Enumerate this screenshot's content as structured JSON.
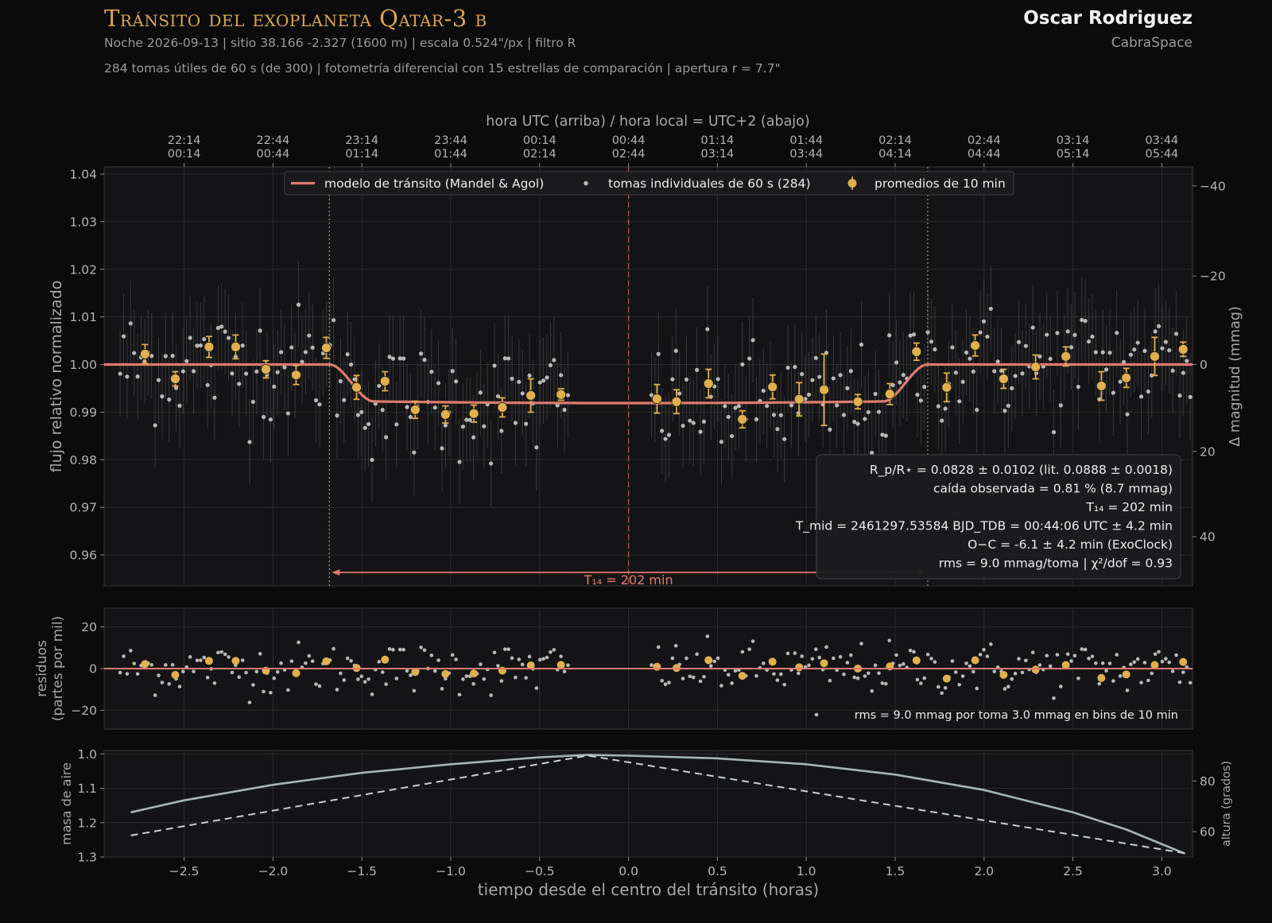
{
  "header": {
    "title": "Tránsito del exoplaneta Qatar-3 b",
    "line1": "Noche 2026-09-13   |   sitio 38.166 -2.327 (1600 m)   |   escala 0.524\"/px   |   filtro R",
    "line2": "284 tomas útiles de 60 s (de 300)   |   fotometría diferencial con 15 estrellas de comparación   |   apertura r = 7.7\"",
    "author": "Oscar Rodriguez",
    "organization": "CabraSpace"
  },
  "colors": {
    "background": "#0b0b0c",
    "panel": "#141416",
    "model": "#e07a6e",
    "binned": "#e0b04c",
    "points": "#b8b8b8",
    "airmass": "#a8b4b4",
    "title": "#d9a554"
  },
  "chart_data": [
    {
      "type": "scatter",
      "panel": "light-curve",
      "top_axis_title": "hora UTC (arriba)   /   hora local = UTC+2 (abajo)",
      "top_ticks": [
        {
          "x": -2.5,
          "utc": "22:14",
          "local": "00:14"
        },
        {
          "x": -2.0,
          "utc": "22:44",
          "local": "00:44"
        },
        {
          "x": -1.5,
          "utc": "23:14",
          "local": "01:14"
        },
        {
          "x": -1.0,
          "utc": "23:44",
          "local": "01:44"
        },
        {
          "x": -0.5,
          "utc": "00:14",
          "local": "02:14"
        },
        {
          "x": 0.0,
          "utc": "00:44",
          "local": "02:44"
        },
        {
          "x": 0.5,
          "utc": "01:14",
          "local": "03:14"
        },
        {
          "x": 1.0,
          "utc": "01:44",
          "local": "03:44"
        },
        {
          "x": 1.5,
          "utc": "02:14",
          "local": "04:14"
        },
        {
          "x": 2.0,
          "utc": "02:44",
          "local": "04:44"
        },
        {
          "x": 2.5,
          "utc": "03:14",
          "local": "05:14"
        },
        {
          "x": 3.0,
          "utc": "03:44",
          "local": "05:44"
        }
      ],
      "ylabel": "flujo relativo normalizado",
      "ylabel_right": "Δ magnitud (mmag)",
      "xlim": [
        -2.95,
        3.1726
      ],
      "ylim": [
        0.9535,
        1.0415
      ],
      "yticks": [
        "0.96",
        "0.97",
        "0.98",
        "0.99",
        "1.00",
        "1.01",
        "1.02",
        "1.03",
        "1.04"
      ],
      "ytick_values": [
        0.96,
        0.97,
        0.98,
        0.99,
        1.0,
        1.01,
        1.02,
        1.03,
        1.04
      ],
      "yticks_right": [
        "−40",
        "−20",
        "0",
        "20",
        "40"
      ],
      "ytick_right_values": [
        -40,
        -20,
        0,
        20,
        40
      ],
      "legend": [
        "modelo de tránsito (Mandel & Agol)",
        "tomas individuales de 60 s (284)",
        "promedios de 10 min"
      ],
      "legend_position": "top-center",
      "ingress_x": -1.683,
      "egress_x": 1.683,
      "mid_x": 0.0,
      "transit_depth": 0.0081,
      "t14_label": "T₁₄ = 202 min",
      "stats": [
        "R_p/R⋆ = 0.0828 ± 0.0102    (lit. 0.0888 ± 0.0018)",
        "caída observada = 0.81 %  (8.7 mmag)",
        "T₁₄ = 202 min",
        "T_mid = 2461297.53584 BJD_TDB = 00:44:06 UTC ± 4.2 min",
        "O−C = -6.1 ± 4.2 min  (ExoClock)",
        "rms = 9.0 mmag/toma   |  χ²/dof = 0.93"
      ],
      "binned": [
        {
          "x": -2.72,
          "y": 1.0022,
          "err": 0.002
        },
        {
          "x": -2.55,
          "y": 0.997,
          "err": 0.0015
        },
        {
          "x": -2.36,
          "y": 1.0037,
          "err": 0.0022
        },
        {
          "x": -2.21,
          "y": 1.0037,
          "err": 0.0025
        },
        {
          "x": -2.04,
          "y": 0.999,
          "err": 0.0018
        },
        {
          "x": -1.87,
          "y": 0.9978,
          "err": 0.002
        },
        {
          "x": -1.7,
          "y": 1.0035,
          "err": 0.0022
        },
        {
          "x": -1.53,
          "y": 0.9952,
          "err": 0.0025
        },
        {
          "x": -1.37,
          "y": 0.9965,
          "err": 0.002
        },
        {
          "x": -1.2,
          "y": 0.9905,
          "err": 0.0018
        },
        {
          "x": -1.03,
          "y": 0.9895,
          "err": 0.0018
        },
        {
          "x": -0.87,
          "y": 0.9897,
          "err": 0.0018
        },
        {
          "x": -0.71,
          "y": 0.991,
          "err": 0.002
        },
        {
          "x": -0.55,
          "y": 0.9935,
          "err": 0.0035
        },
        {
          "x": -0.38,
          "y": 0.9937,
          "err": 0.0012
        },
        {
          "x": 0.16,
          "y": 0.9928,
          "err": 0.003
        },
        {
          "x": 0.27,
          "y": 0.9922,
          "err": 0.0025
        },
        {
          "x": 0.45,
          "y": 0.996,
          "err": 0.003
        },
        {
          "x": 0.64,
          "y": 0.9885,
          "err": 0.0018
        },
        {
          "x": 0.81,
          "y": 0.9953,
          "err": 0.0025
        },
        {
          "x": 0.96,
          "y": 0.9927,
          "err": 0.0035
        },
        {
          "x": 1.1,
          "y": 0.9947,
          "err": 0.0075
        },
        {
          "x": 1.29,
          "y": 0.9922,
          "err": 0.0015
        },
        {
          "x": 1.47,
          "y": 0.9938,
          "err": 0.0022
        },
        {
          "x": 1.62,
          "y": 1.0027,
          "err": 0.0018
        },
        {
          "x": 1.79,
          "y": 0.9952,
          "err": 0.003
        },
        {
          "x": 1.95,
          "y": 1.004,
          "err": 0.0022
        },
        {
          "x": 2.11,
          "y": 0.997,
          "err": 0.002
        },
        {
          "x": 2.29,
          "y": 0.9995,
          "err": 0.0025
        },
        {
          "x": 2.46,
          "y": 1.0017,
          "err": 0.002
        },
        {
          "x": 2.66,
          "y": 0.9955,
          "err": 0.003
        },
        {
          "x": 2.8,
          "y": 0.9972,
          "err": 0.002
        },
        {
          "x": 2.96,
          "y": 1.0017,
          "err": 0.004
        },
        {
          "x": 3.12,
          "y": 1.0032,
          "err": 0.0015
        }
      ]
    },
    {
      "type": "scatter",
      "panel": "residuals",
      "ylabel": "residuos",
      "ylabel2": "(partes por mil)",
      "ylim": [
        -29,
        29
      ],
      "yticks": [
        "−20",
        "0",
        "20"
      ],
      "ytick_values": [
        -20,
        0,
        20
      ],
      "annotation": "rms = 9.0 mmag por toma    3.0 mmag en bins de 10 min"
    },
    {
      "type": "line",
      "panel": "airmass",
      "ylabel": "masa de aire",
      "ylabel_right": "altura (grados)",
      "xlabel": "tiempo desde el centro del tránsito   (horas)",
      "ylim": [
        1.3,
        0.99
      ],
      "yticks": [
        "1.0",
        "1.1",
        "1.2",
        "1.3"
      ],
      "ytick_values": [
        1.0,
        1.1,
        1.2,
        1.3
      ],
      "yticks_right": [
        "60",
        "80"
      ],
      "ytick_right_values": [
        60,
        80
      ],
      "alt_range": [
        50,
        92
      ],
      "xticks": [
        "−2.5",
        "−2.0",
        "−1.5",
        "−1.0",
        "−0.5",
        "0.0",
        "0.5",
        "1.0",
        "1.5",
        "2.0",
        "2.5",
        "3.0"
      ],
      "xtick_values": [
        -2.5,
        -2.0,
        -1.5,
        -1.0,
        -0.5,
        0.0,
        0.5,
        1.0,
        1.5,
        2.0,
        2.5,
        3.0
      ],
      "airmass": {
        "x": [
          -2.8,
          -2.5,
          -2.0,
          -1.5,
          -1.0,
          -0.5,
          -0.23,
          0.0,
          0.5,
          1.0,
          1.5,
          2.0,
          2.5,
          2.8,
          3.13
        ],
        "y": [
          1.17,
          1.135,
          1.09,
          1.055,
          1.03,
          1.01,
          1.003,
          1.005,
          1.013,
          1.03,
          1.06,
          1.105,
          1.17,
          1.22,
          1.29
        ]
      },
      "altitude": {
        "x": [
          -2.8,
          -0.23,
          3.13
        ],
        "y": [
          58.5,
          90.0,
          51.5
        ]
      }
    }
  ]
}
